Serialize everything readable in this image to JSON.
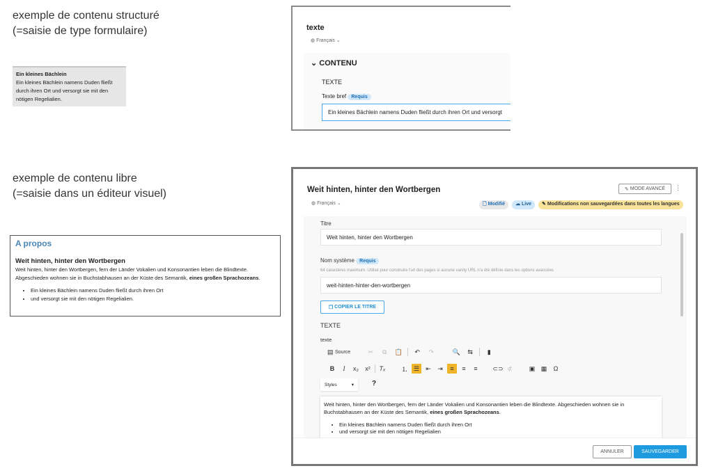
{
  "captions": {
    "structured": [
      "exemple de contenu structuré",
      "(=saisie de type formulaire)"
    ],
    "free": [
      "exemple de contenu libre",
      "(=saisie dans un éditeur visuel)"
    ]
  },
  "structured_preview": {
    "title": "Ein kleines Bächlein",
    "text": "Ein kleines Bächlein namens Duden fließt durch ihren Ort und versorgt sie mit den nötigen Regelialien."
  },
  "structured_editor": {
    "title": "texte",
    "language": "Français",
    "section": "CONTENU",
    "group": "TEXTE",
    "field_label": "Texte bref",
    "required": "Requis",
    "field_value": "Ein kleines Bächlein namens Duden fließt durch ihren Ort und versorgt"
  },
  "free_preview": {
    "heading": "A propos",
    "title": "Weit hinten, hinter den Wortbergen",
    "para": "Weit hinten, hinter den Wortbergen, fern der Länder Vokalien und Konsonantien leben die Blindtexte. Abgeschieden wohnen sie in Buchstabhausen an der Küste des Semantik, ",
    "para_bold": "eines großen Sprachozeans",
    "para_end": ".",
    "bullets": [
      "Ein kleines Bächlein namens Duden fließt durch ihren Ort",
      "und versorgt sie mit den nötigen Regelialien."
    ]
  },
  "free_editor": {
    "title": "Weit hinten, hinter den Wortbergen",
    "language": "Français",
    "mode_button": "MODE AVANCÉ",
    "badges": {
      "modified": "Modifié",
      "live": "Live",
      "unsaved": "Modifications non sauvegardées dans toutes les langues"
    },
    "titre_label": "Titre",
    "titre_value": "Weit hinten, hinter den Wortbergen",
    "system_label": "Nom système",
    "required": "Requis",
    "system_hint": "64 caractères maximum. Utilisé pour construire l'url des pages si aucune vanity URL n'a été définie dans les options avancées",
    "system_value": "weit-hinten-hinter-den-wortbergen",
    "copy_button": "COPIER LE TITRE",
    "group": "TEXTE",
    "field_label": "texte",
    "source": "Source",
    "styles": "Styles",
    "help": "?",
    "content_para": "Weit hinten, hinter den Wortbergen, fern der Länder Vokalien und Konsonantien leben die Blindtexte. Abgeschieden wohnen sie in Buchstabhausen an der Küste des Semantik, ",
    "content_bold": "eines großen Sprachozeans",
    "content_end": ".",
    "content_bullets": [
      "Ein kleines Bächlein namens Duden fließt durch ihren Ort",
      "und versorgt sie mit den nötigen Regelialien"
    ],
    "cancel": "ANNULER",
    "save": "SAUVEGARDER"
  },
  "colors": {
    "accent": "#1e9be0",
    "heading_blue": "#4a86b4",
    "toolbar_active": "#f0b429",
    "unsaved_badge": "#f9e39b"
  }
}
